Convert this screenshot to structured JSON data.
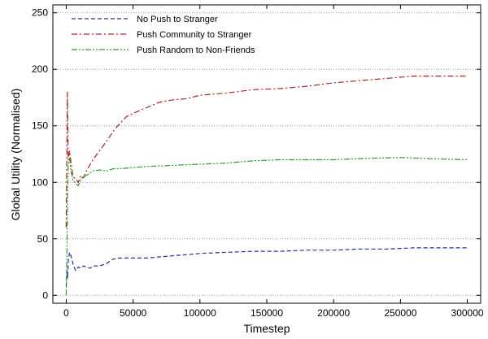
{
  "chart_data": {
    "type": "line",
    "title": "",
    "xlabel": "Timestep",
    "ylabel": "Global Utility (Normalised)",
    "xlim": [
      -10000,
      310000
    ],
    "ylim": [
      -7,
      257
    ],
    "x_ticks": [
      0,
      50000,
      100000,
      150000,
      200000,
      250000,
      300000
    ],
    "y_ticks": [
      0,
      50,
      100,
      150,
      200,
      250
    ],
    "grid": "horizontal dotted",
    "legend_position": "top-left",
    "series": [
      {
        "name": "No Push to Stranger",
        "color": "#1f2fa8",
        "dash": "dashed",
        "points": [
          [
            0,
            8
          ],
          [
            500,
            22
          ],
          [
            1000,
            15
          ],
          [
            1500,
            30
          ],
          [
            2500,
            38
          ],
          [
            3500,
            35
          ],
          [
            5000,
            28
          ],
          [
            7000,
            22
          ],
          [
            9000,
            25
          ],
          [
            11000,
            24
          ],
          [
            13000,
            26
          ],
          [
            15000,
            25
          ],
          [
            18000,
            24
          ],
          [
            20000,
            26
          ],
          [
            25000,
            26
          ],
          [
            30000,
            28
          ],
          [
            35000,
            32
          ],
          [
            40000,
            33
          ],
          [
            50000,
            33
          ],
          [
            60000,
            33
          ],
          [
            70000,
            34
          ],
          [
            80000,
            35
          ],
          [
            90000,
            36
          ],
          [
            100000,
            37
          ],
          [
            120000,
            38
          ],
          [
            140000,
            39
          ],
          [
            150000,
            39
          ],
          [
            160000,
            39
          ],
          [
            180000,
            40
          ],
          [
            200000,
            40
          ],
          [
            220000,
            41
          ],
          [
            240000,
            41
          ],
          [
            260000,
            42
          ],
          [
            280000,
            42
          ],
          [
            300000,
            42
          ]
        ]
      },
      {
        "name": "Push Community to Stranger",
        "color": "#b22020",
        "dash": "dashdot",
        "points": [
          [
            0,
            60
          ],
          [
            800,
            180
          ],
          [
            1500,
            120
          ],
          [
            2500,
            128
          ],
          [
            3500,
            118
          ],
          [
            5000,
            105
          ],
          [
            7000,
            103
          ],
          [
            9000,
            100
          ],
          [
            11000,
            106
          ],
          [
            13000,
            104
          ],
          [
            15000,
            110
          ],
          [
            20000,
            120
          ],
          [
            25000,
            128
          ],
          [
            30000,
            136
          ],
          [
            35000,
            145
          ],
          [
            40000,
            152
          ],
          [
            45000,
            158
          ],
          [
            50000,
            161
          ],
          [
            60000,
            166
          ],
          [
            70000,
            171
          ],
          [
            80000,
            173
          ],
          [
            90000,
            174
          ],
          [
            100000,
            177
          ],
          [
            120000,
            179
          ],
          [
            140000,
            182
          ],
          [
            160000,
            183
          ],
          [
            180000,
            185
          ],
          [
            200000,
            188
          ],
          [
            220000,
            190
          ],
          [
            240000,
            192
          ],
          [
            260000,
            194
          ],
          [
            280000,
            194
          ],
          [
            300000,
            194
          ]
        ]
      },
      {
        "name": "Push Random to Non-Friends",
        "color": "#2aa02a",
        "dash": "dashdotdot",
        "points": [
          [
            0,
            0
          ],
          [
            500,
            40
          ],
          [
            1000,
            90
          ],
          [
            1500,
            115
          ],
          [
            2500,
            122
          ],
          [
            3500,
            110
          ],
          [
            5000,
            102
          ],
          [
            7000,
            99
          ],
          [
            9000,
            97
          ],
          [
            11000,
            103
          ],
          [
            13000,
            105
          ],
          [
            15000,
            106
          ],
          [
            20000,
            110
          ],
          [
            25000,
            111
          ],
          [
            30000,
            110
          ],
          [
            35000,
            112
          ],
          [
            40000,
            112
          ],
          [
            50000,
            113
          ],
          [
            60000,
            114
          ],
          [
            80000,
            115
          ],
          [
            100000,
            116
          ],
          [
            120000,
            117
          ],
          [
            140000,
            119
          ],
          [
            160000,
            120
          ],
          [
            180000,
            120
          ],
          [
            200000,
            120
          ],
          [
            220000,
            121
          ],
          [
            250000,
            122
          ],
          [
            270000,
            121
          ],
          [
            300000,
            120
          ]
        ]
      }
    ]
  }
}
